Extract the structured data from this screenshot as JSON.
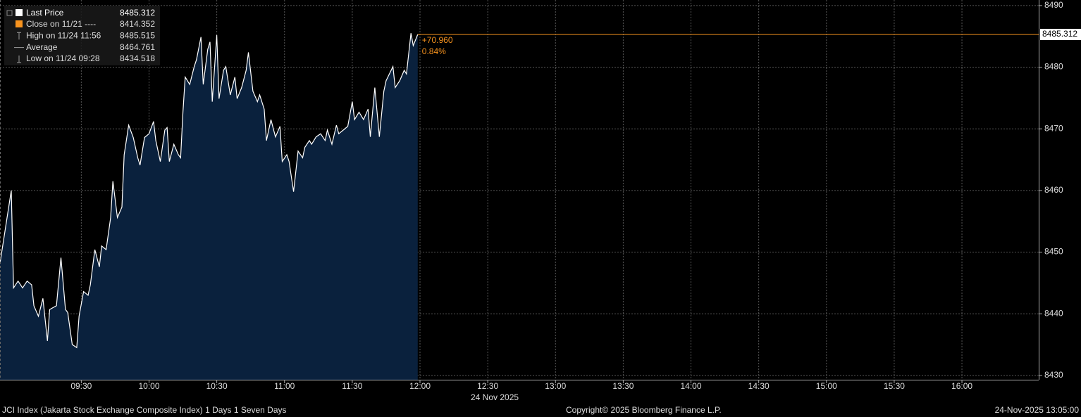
{
  "chart_data": {
    "type": "area",
    "series": [
      {
        "name": "Last Price",
        "color": "#ffffff",
        "fill": "#0a213d",
        "last_value": 8485.312,
        "values": [
          8448.2,
          8460,
          8444.2,
          8445.3,
          8444.2,
          8445.3,
          8444.7,
          8441.3,
          8439.6,
          8442.5,
          8435.6,
          8440.7,
          8441.3,
          8449.1,
          8440.7,
          8440.2,
          8435.0,
          8434.518,
          8439.6,
          8443.6,
          8443.0,
          8444.7,
          8450.4,
          8447.6,
          8451.0,
          8450.4,
          8455.6,
          8461.5,
          8455.6,
          8457.3,
          8465.8,
          8470.6,
          8468.6,
          8465.3,
          8464.1,
          8468.6,
          8469.2,
          8471.2,
          8468.1,
          8464.7,
          8469.8,
          8470.2,
          8464.7,
          8467.5,
          8465.8,
          8465.3,
          8472.7,
          8478.4,
          8477.2,
          8480.1,
          8481.2,
          8484.9,
          8477.2,
          8482.9,
          8484.1,
          8474.4,
          8485.2,
          8474.9,
          8479.5,
          8480.1,
          8475.5,
          8478.4,
          8474.9,
          8476.7,
          8479.5,
          8482.4,
          8476.1,
          8474.4,
          8475.5,
          8473.2,
          8468.1,
          8471.5,
          8468.7,
          8470.4,
          8464.7,
          8465.8,
          8464.7,
          8459.8,
          8466.4,
          8465.3,
          8467.0,
          8468.1,
          8467.5,
          8468.7,
          8469.2,
          8468.1,
          8469.8,
          8467.5,
          8470.6,
          8469.2,
          8469.8,
          8470.4,
          8474.4,
          8471.5,
          8472.7,
          8471.5,
          8473.2,
          8468.7,
          8476.7,
          8468.7,
          8476.1,
          8477.8,
          8480.1,
          8476.7,
          8477.8,
          8479.5,
          8478.9,
          8485.515,
          8483.5,
          8485.312
        ]
      }
    ],
    "x": [
      "08:54",
      "08:59",
      "09:00",
      "09:02",
      "09:04",
      "09:06",
      "09:08",
      "09:09",
      "09:11",
      "09:13",
      "09:15",
      "09:16",
      "09:19",
      "09:21",
      "09:23",
      "09:24",
      "09:26",
      "09:28",
      "09:29",
      "09:31",
      "09:33",
      "09:34",
      "09:36",
      "09:38",
      "09:39",
      "09:41",
      "09:43",
      "09:44",
      "09:46",
      "09:48",
      "09:49",
      "09:51",
      "09:53",
      "09:55",
      "09:56",
      "09:58",
      "10:00",
      "10:02",
      "10:03",
      "10:05",
      "10:07",
      "10:08",
      "10:09",
      "10:11",
      "10:13",
      "10:14",
      "10:15",
      "10:16",
      "10:18",
      "10:20",
      "10:21",
      "10:23",
      "10:24",
      "10:26",
      "10:27",
      "10:28",
      "10:30",
      "10:31",
      "10:33",
      "10:34",
      "10:36",
      "10:38",
      "10:39",
      "10:41",
      "10:43",
      "10:44",
      "10:46",
      "10:48",
      "10:49",
      "10:51",
      "10:52",
      "10:54",
      "10:56",
      "10:58",
      "10:59",
      "11:01",
      "11:02",
      "11:04",
      "11:06",
      "11:08",
      "11:09",
      "11:11",
      "11:12",
      "11:14",
      "11:16",
      "11:18",
      "11:19",
      "11:21",
      "11:23",
      "11:24",
      "11:26",
      "11:28",
      "11:30",
      "11:31",
      "11:33",
      "11:35",
      "11:37",
      "11:38",
      "11:40",
      "11:42",
      "11:44",
      "11:45",
      "11:48",
      "11:49",
      "11:51",
      "11:53",
      "11:54",
      "11:56",
      "11:57",
      "11:59"
    ],
    "xlim": [
      "08:54",
      "16:34"
    ],
    "xticks": [
      "09:30",
      "10:00",
      "10:30",
      "11:00",
      "11:30",
      "12:00",
      "12:30",
      "13:00",
      "13:30",
      "14:00",
      "14:30",
      "15:00",
      "15:30",
      "16:00"
    ],
    "ylim": [
      8429.3,
      8490.9
    ],
    "yticks": [
      8430,
      8440,
      8450,
      8460,
      8470,
      8480,
      8490
    ],
    "grid": true,
    "last_line_color": "#f7931e",
    "date_label": "24 Nov 2025",
    "legend": [
      {
        "label": "Close on 11/21 ----",
        "value": 8414.352,
        "color": "#f7931e"
      },
      {
        "label": "High on 11/24 11:56",
        "value": 8485.515,
        "icon": "high"
      },
      {
        "label": "Average",
        "value": 8464.761,
        "icon": "avg"
      },
      {
        "label": "Low on 11/24 09:28",
        "value": 8434.518,
        "icon": "low"
      }
    ],
    "change": [
      {
        "value": 70.96,
        "label": "+70.960"
      },
      {
        "value": 0.84,
        "label": "0.84%"
      }
    ],
    "change_color": "#f7931e",
    "footer": {
      "left": "JCI Index (Jakarta Stock Exchange Composite Index) 1 Days 1 Seven Days",
      "center": "Copyright© 2025 Bloomberg Finance L.P.",
      "right": "24-Nov-2025 13:05:00"
    }
  }
}
